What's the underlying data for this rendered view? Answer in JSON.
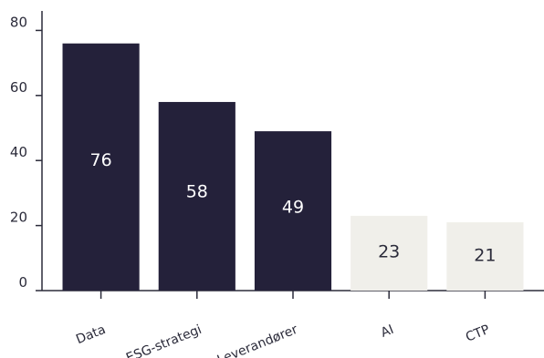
{
  "chart_data": {
    "type": "bar",
    "title": "",
    "xlabel": "",
    "ylabel": "",
    "categories": [
      "Data",
      "ESG-strategi",
      "Leverandører",
      "AI",
      "CTP"
    ],
    "values": [
      76,
      58,
      49,
      23,
      21
    ],
    "data_labels": [
      "76",
      "58",
      "49",
      "23",
      "21"
    ],
    "ylim": [
      0,
      86
    ],
    "yticks": [
      0,
      20,
      40,
      60,
      80
    ],
    "ytick_labels": [
      "0",
      "20",
      "40",
      "60",
      "80"
    ],
    "grid": false,
    "legend": "none",
    "colors": {
      "dark_bar": "#24213a",
      "light_bar": "#f0efea",
      "dark_label": "#ffffff",
      "light_label": "#2b2b3a",
      "axis": "#2b2b3a"
    },
    "bar_style": [
      "dark",
      "dark",
      "dark",
      "light",
      "light"
    ]
  }
}
